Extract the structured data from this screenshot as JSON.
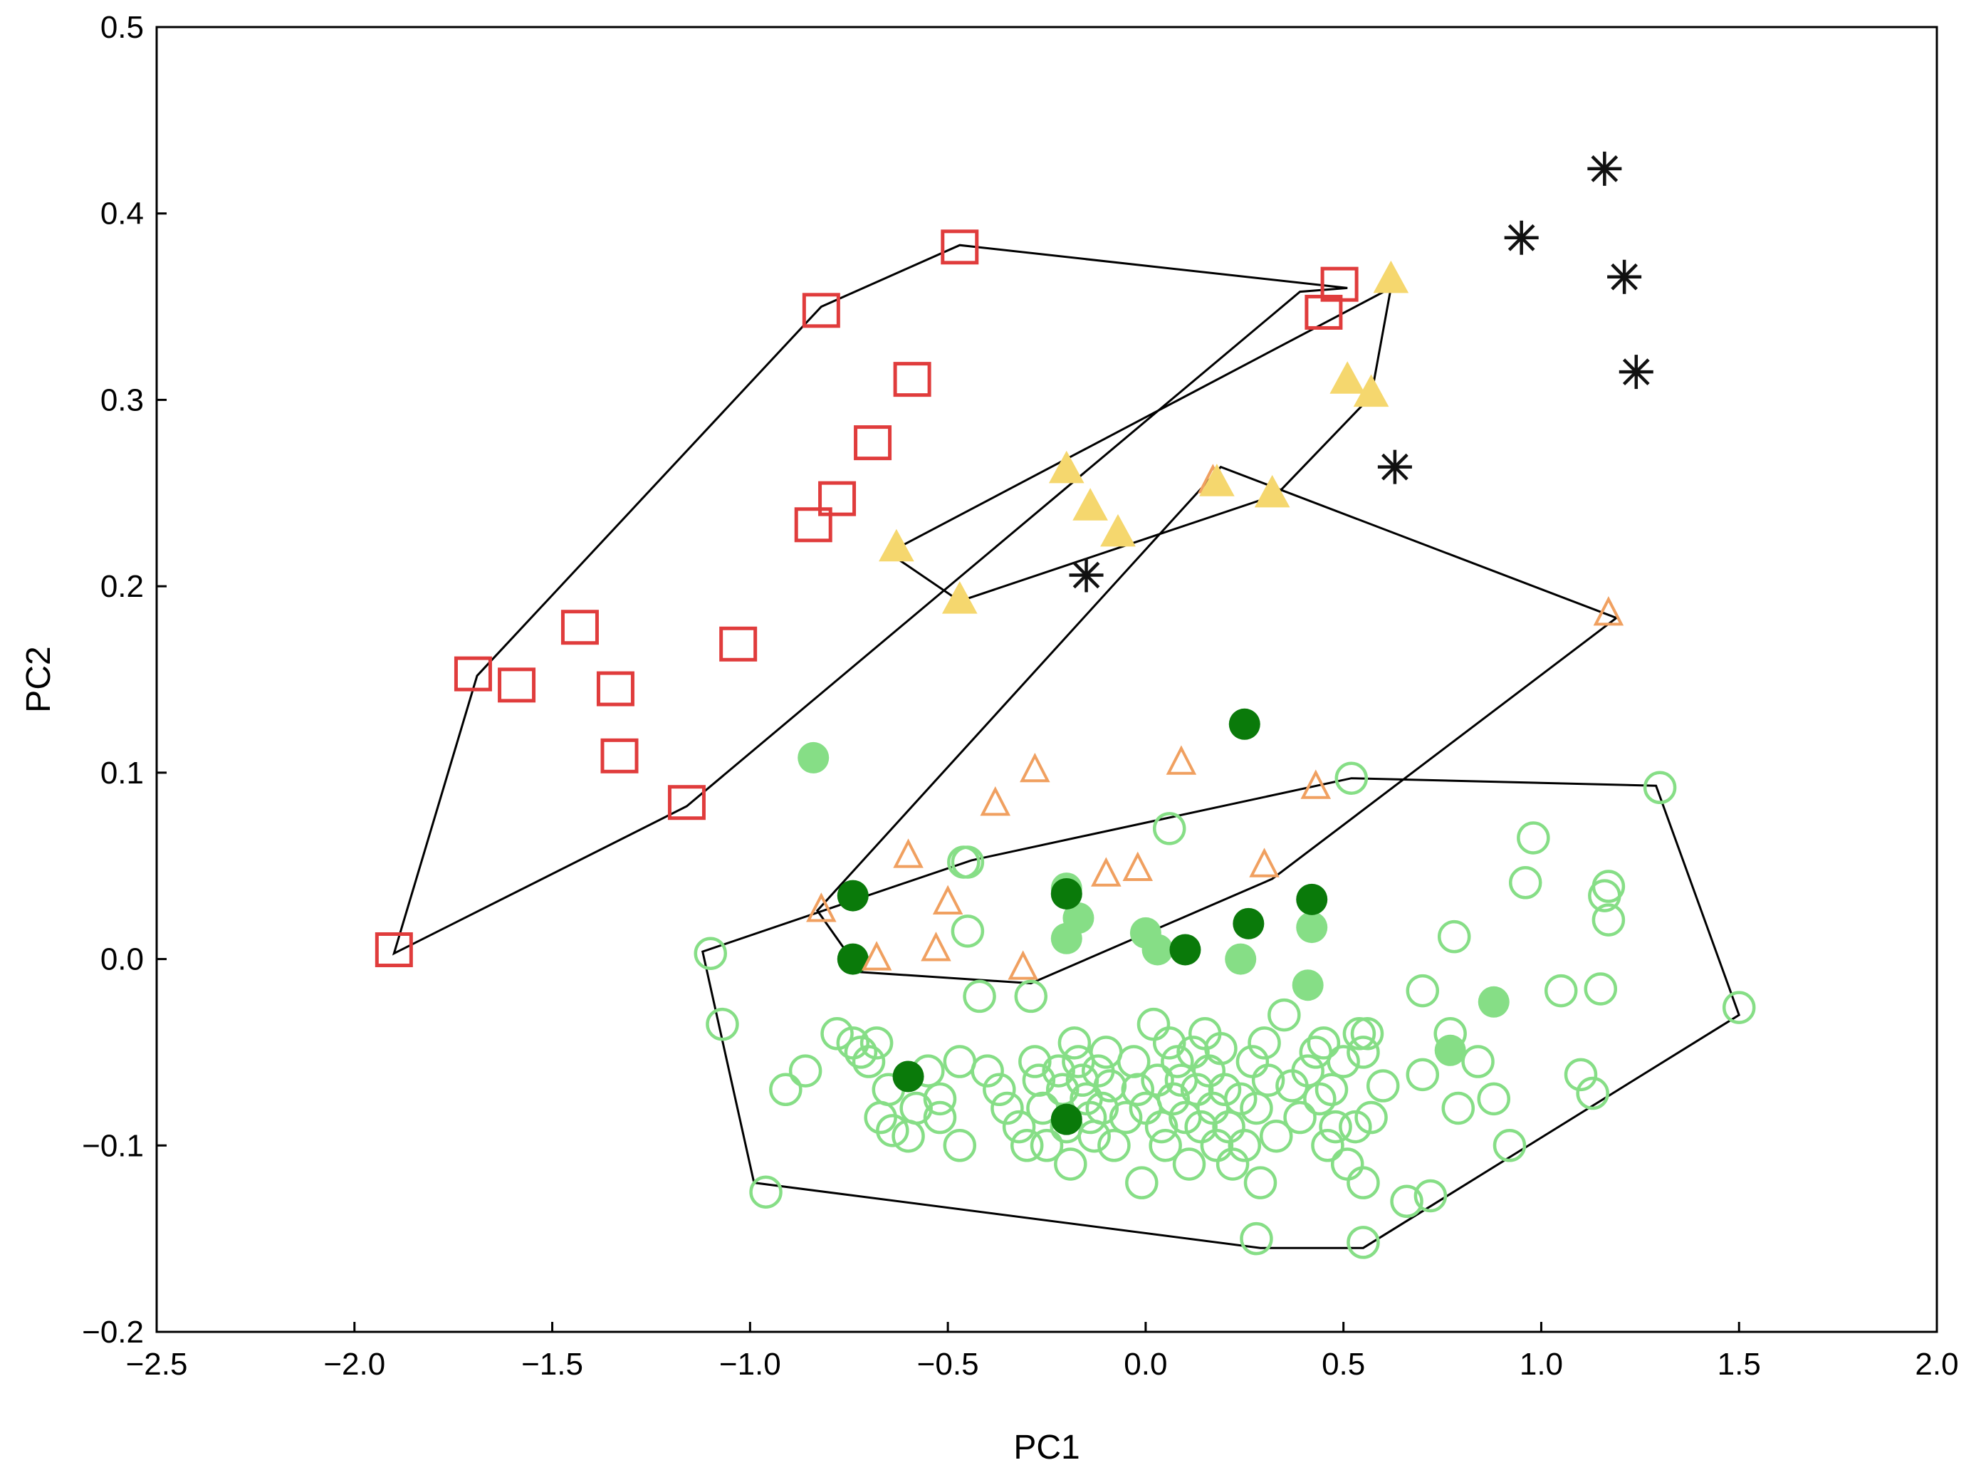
{
  "chart_data": {
    "type": "scatter",
    "title": "",
    "xlabel": "PC1",
    "ylabel": "PC2",
    "xlim": [
      -2.5,
      2.0
    ],
    "ylim": [
      -0.2,
      0.5
    ],
    "xticks": [
      -2.5,
      -2.0,
      -1.5,
      -1.0,
      -0.5,
      0.0,
      0.5,
      1.0,
      1.5,
      2.0
    ],
    "yticks": [
      -0.2,
      -0.1,
      0.0,
      0.1,
      0.2,
      0.3,
      0.4,
      0.5
    ],
    "xtick_labels": [
      "−2.5",
      "−2.0",
      "−1.5",
      "−1.0",
      "−0.5",
      "0.0",
      "0.5",
      "1.0",
      "1.5",
      "2.0"
    ],
    "ytick_labels": [
      "−0.2",
      "−0.1",
      "0.0",
      "0.1",
      "0.2",
      "0.3",
      "0.4",
      "0.5"
    ],
    "grid": false,
    "series": [
      {
        "name": "red-squares",
        "marker": "square-open",
        "color": "#e03c3c",
        "points": [
          [
            -1.9,
            0.005
          ],
          [
            -1.7,
            0.153
          ],
          [
            -1.59,
            0.147
          ],
          [
            -1.43,
            0.178
          ],
          [
            -1.34,
            0.145
          ],
          [
            -1.33,
            0.109
          ],
          [
            -1.16,
            0.084
          ],
          [
            -1.03,
            0.169
          ],
          [
            -0.84,
            0.233
          ],
          [
            -0.82,
            0.348
          ],
          [
            -0.78,
            0.247
          ],
          [
            -0.69,
            0.277
          ],
          [
            -0.59,
            0.311
          ],
          [
            -0.47,
            0.382
          ],
          [
            0.45,
            0.347
          ],
          [
            0.49,
            0.362
          ]
        ]
      },
      {
        "name": "yellow-triangles",
        "marker": "triangle-filled",
        "color": "#f5d76e",
        "points": [
          [
            -0.63,
            0.22
          ],
          [
            -0.47,
            0.192
          ],
          [
            -0.2,
            0.262
          ],
          [
            -0.14,
            0.242
          ],
          [
            -0.07,
            0.228
          ],
          [
            0.18,
            0.255
          ],
          [
            0.32,
            0.249
          ],
          [
            0.51,
            0.31
          ],
          [
            0.57,
            0.303
          ],
          [
            0.62,
            0.364
          ]
        ]
      },
      {
        "name": "black-stars",
        "marker": "asterisk",
        "color": "#111111",
        "points": [
          [
            -0.15,
            0.206
          ],
          [
            0.63,
            0.264
          ],
          [
            0.95,
            0.387
          ],
          [
            1.16,
            0.424
          ],
          [
            1.21,
            0.366
          ],
          [
            1.24,
            0.315
          ]
        ]
      },
      {
        "name": "orange-triangles",
        "marker": "triangle-open",
        "color": "#f0a060",
        "points": [
          [
            -0.82,
            0.026
          ],
          [
            -0.68,
            0.0
          ],
          [
            -0.6,
            0.055
          ],
          [
            -0.5,
            0.03
          ],
          [
            -0.53,
            0.005
          ],
          [
            -0.38,
            0.083
          ],
          [
            -0.28,
            0.101
          ],
          [
            -0.31,
            -0.005
          ],
          [
            -0.1,
            0.045
          ],
          [
            -0.02,
            0.048
          ],
          [
            0.09,
            0.105
          ],
          [
            0.17,
            0.256
          ],
          [
            0.3,
            0.05
          ],
          [
            0.43,
            0.092
          ],
          [
            1.17,
            0.185
          ]
        ]
      },
      {
        "name": "dark-green-circles",
        "marker": "circle-filled",
        "color": "#0a7a0a",
        "points": [
          [
            -0.74,
            0.034
          ],
          [
            -0.74,
            0.0
          ],
          [
            -0.6,
            -0.063
          ],
          [
            -0.2,
            0.035
          ],
          [
            -0.2,
            -0.086
          ],
          [
            0.1,
            0.005
          ],
          [
            0.25,
            0.126
          ],
          [
            0.26,
            0.019
          ],
          [
            0.42,
            0.032
          ]
        ]
      },
      {
        "name": "light-green-filled-circles",
        "marker": "circle-filled",
        "color": "#86de86",
        "points": [
          [
            -0.84,
            0.108
          ],
          [
            -0.2,
            0.038
          ],
          [
            -0.17,
            0.022
          ],
          [
            -0.2,
            0.011
          ],
          [
            0.0,
            0.014
          ],
          [
            0.03,
            0.005
          ],
          [
            0.24,
            0.0
          ],
          [
            0.41,
            -0.014
          ],
          [
            0.42,
            0.017
          ],
          [
            0.77,
            -0.049
          ],
          [
            0.88,
            -0.023
          ]
        ]
      },
      {
        "name": "light-green-open-circles",
        "marker": "circle-open",
        "color": "#86de86",
        "points": [
          [
            -1.1,
            0.003
          ],
          [
            -1.07,
            -0.035
          ],
          [
            -0.96,
            -0.125
          ],
          [
            -0.91,
            -0.07
          ],
          [
            -0.86,
            -0.06
          ],
          [
            -0.78,
            -0.04
          ],
          [
            -0.74,
            -0.045
          ],
          [
            -0.72,
            -0.05
          ],
          [
            -0.7,
            -0.055
          ],
          [
            -0.68,
            -0.045
          ],
          [
            -0.65,
            -0.07
          ],
          [
            -0.67,
            -0.085
          ],
          [
            -0.64,
            -0.092
          ],
          [
            -0.6,
            -0.095
          ],
          [
            -0.58,
            -0.08
          ],
          [
            -0.55,
            -0.06
          ],
          [
            -0.52,
            -0.075
          ],
          [
            -0.52,
            -0.085
          ],
          [
            -0.47,
            -0.055
          ],
          [
            -0.47,
            -0.1
          ],
          [
            -0.42,
            -0.02
          ],
          [
            -0.45,
            0.015
          ],
          [
            -0.46,
            0.052
          ],
          [
            -0.4,
            -0.06
          ],
          [
            -0.37,
            -0.07
          ],
          [
            -0.35,
            -0.08
          ],
          [
            -0.32,
            -0.09
          ],
          [
            -0.3,
            -0.1
          ],
          [
            -0.29,
            -0.02
          ],
          [
            -0.28,
            -0.055
          ],
          [
            -0.27,
            -0.065
          ],
          [
            -0.26,
            -0.08
          ],
          [
            -0.25,
            -0.1
          ],
          [
            -0.22,
            -0.06
          ],
          [
            -0.21,
            -0.07
          ],
          [
            -0.2,
            -0.09
          ],
          [
            -0.19,
            -0.11
          ],
          [
            -0.18,
            -0.045
          ],
          [
            -0.17,
            -0.055
          ],
          [
            -0.16,
            -0.065
          ],
          [
            -0.15,
            -0.075
          ],
          [
            -0.14,
            -0.085
          ],
          [
            -0.13,
            -0.095
          ],
          [
            -0.12,
            -0.06
          ],
          [
            -0.11,
            -0.08
          ],
          [
            -0.1,
            -0.05
          ],
          [
            -0.09,
            -0.068
          ],
          [
            -0.08,
            -0.1
          ],
          [
            -0.05,
            -0.085
          ],
          [
            -0.03,
            -0.055
          ],
          [
            -0.02,
            -0.07
          ],
          [
            -0.01,
            -0.12
          ],
          [
            0.0,
            -0.08
          ],
          [
            0.02,
            -0.035
          ],
          [
            0.03,
            -0.065
          ],
          [
            0.04,
            -0.09
          ],
          [
            0.05,
            -0.1
          ],
          [
            0.06,
            -0.045
          ],
          [
            0.07,
            -0.075
          ],
          [
            0.08,
            -0.055
          ],
          [
            0.09,
            -0.065
          ],
          [
            0.1,
            -0.085
          ],
          [
            0.11,
            -0.11
          ],
          [
            0.12,
            -0.05
          ],
          [
            0.13,
            -0.07
          ],
          [
            0.14,
            -0.09
          ],
          [
            0.15,
            -0.04
          ],
          [
            0.16,
            -0.06
          ],
          [
            0.17,
            -0.08
          ],
          [
            0.18,
            -0.1
          ],
          [
            0.19,
            -0.048
          ],
          [
            0.2,
            -0.07
          ],
          [
            0.21,
            -0.09
          ],
          [
            0.22,
            -0.11
          ],
          [
            0.24,
            -0.075
          ],
          [
            0.25,
            -0.1
          ],
          [
            0.27,
            -0.055
          ],
          [
            0.28,
            -0.08
          ],
          [
            0.29,
            -0.12
          ],
          [
            0.28,
            -0.15
          ],
          [
            0.3,
            -0.045
          ],
          [
            0.31,
            -0.065
          ],
          [
            0.33,
            -0.095
          ],
          [
            0.35,
            -0.03
          ],
          [
            0.37,
            -0.068
          ],
          [
            0.39,
            -0.085
          ],
          [
            0.41,
            -0.06
          ],
          [
            0.43,
            -0.05
          ],
          [
            0.44,
            -0.075
          ],
          [
            0.45,
            -0.045
          ],
          [
            0.46,
            -0.1
          ],
          [
            0.47,
            -0.07
          ],
          [
            0.48,
            -0.09
          ],
          [
            0.5,
            -0.055
          ],
          [
            0.51,
            -0.11
          ],
          [
            0.53,
            -0.09
          ],
          [
            0.54,
            -0.04
          ],
          [
            0.55,
            -0.05
          ],
          [
            0.55,
            -0.12
          ],
          [
            0.55,
            -0.152
          ],
          [
            0.56,
            -0.04
          ],
          [
            0.57,
            -0.085
          ],
          [
            0.6,
            -0.068
          ],
          [
            0.66,
            -0.13
          ],
          [
            0.72,
            -0.127
          ],
          [
            0.7,
            -0.062
          ],
          [
            0.77,
            -0.04
          ],
          [
            0.79,
            -0.08
          ],
          [
            0.78,
            0.012
          ],
          [
            0.7,
            -0.017
          ],
          [
            0.84,
            -0.055
          ],
          [
            0.88,
            -0.075
          ],
          [
            0.92,
            -0.1
          ],
          [
            0.96,
            0.041
          ],
          [
            0.98,
            0.065
          ],
          [
            1.05,
            -0.017
          ],
          [
            1.1,
            -0.062
          ],
          [
            1.13,
            -0.072
          ],
          [
            1.16,
            0.034
          ],
          [
            1.17,
            0.021
          ],
          [
            1.17,
            0.039
          ],
          [
            1.15,
            -0.016
          ],
          [
            1.3,
            0.092
          ],
          [
            0.52,
            0.097
          ],
          [
            0.06,
            0.07
          ],
          [
            -0.45,
            0.052
          ],
          [
            1.5,
            -0.026
          ]
        ]
      }
    ],
    "hulls": [
      {
        "name": "red-hull",
        "color": "#000000",
        "points": [
          [
            -1.9,
            0.003
          ],
          [
            -1.16,
            0.082
          ],
          [
            0.39,
            0.358
          ],
          [
            0.51,
            0.36
          ],
          [
            -0.47,
            0.383
          ],
          [
            -0.82,
            0.35
          ],
          [
            -1.69,
            0.152
          ]
        ]
      },
      {
        "name": "yellow-hull",
        "color": "#000000",
        "points": [
          [
            -0.65,
            0.218
          ],
          [
            -0.47,
            0.192
          ],
          [
            0.33,
            0.249
          ],
          [
            0.57,
            0.302
          ],
          [
            0.62,
            0.36
          ],
          [
            -0.65,
            0.218
          ]
        ]
      },
      {
        "name": "orange-hull",
        "color": "#000000",
        "points": [
          [
            -0.83,
            0.026
          ],
          [
            -0.72,
            -0.007
          ],
          [
            -0.29,
            -0.013
          ],
          [
            0.32,
            0.043
          ],
          [
            1.19,
            0.183
          ],
          [
            0.19,
            0.264
          ],
          [
            -0.83,
            0.026
          ]
        ]
      },
      {
        "name": "green-hull",
        "color": "#000000",
        "points": [
          [
            -1.12,
            0.004
          ],
          [
            -0.99,
            -0.12
          ],
          [
            0.29,
            -0.155
          ],
          [
            0.55,
            -0.155
          ],
          [
            1.5,
            -0.03
          ],
          [
            1.29,
            0.093
          ],
          [
            0.52,
            0.097
          ],
          [
            -0.44,
            0.053
          ],
          [
            -1.12,
            0.004
          ]
        ]
      }
    ]
  }
}
